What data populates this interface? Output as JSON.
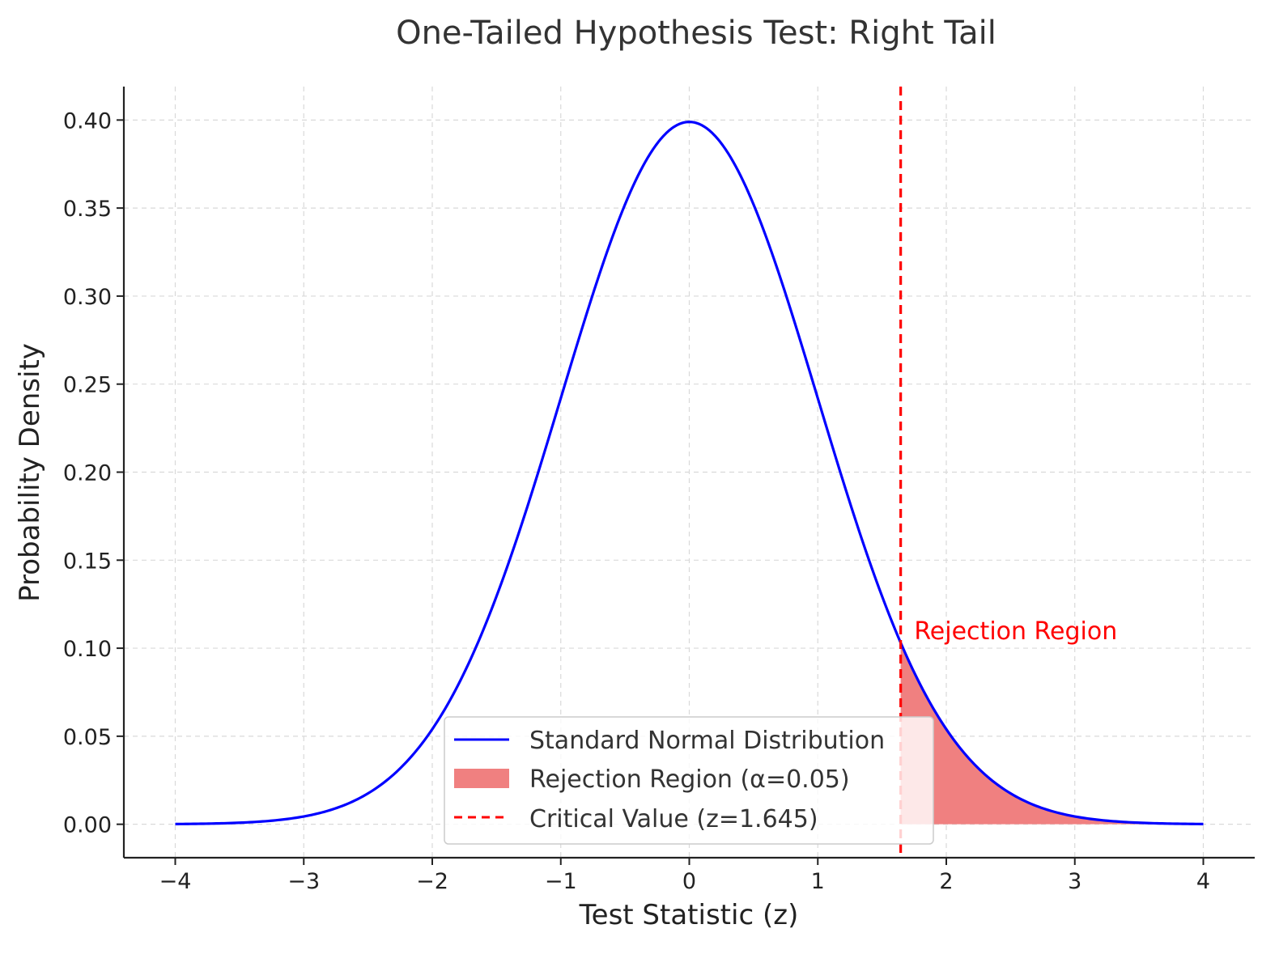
{
  "chart_data": {
    "type": "line",
    "title": "One-Tailed Hypothesis Test: Right Tail",
    "xlabel": "Test Statistic (z)",
    "ylabel": "Probability Density",
    "xlim": [
      -4.4,
      4.4
    ],
    "ylim": [
      -0.019,
      0.419
    ],
    "grid": true,
    "legend_position": "bottom-center",
    "x_ticks": [
      {
        "value": -4,
        "label": "−4"
      },
      {
        "value": -3,
        "label": "−3"
      },
      {
        "value": -2,
        "label": "−2"
      },
      {
        "value": -1,
        "label": "−1"
      },
      {
        "value": 0,
        "label": "0"
      },
      {
        "value": 1,
        "label": "1"
      },
      {
        "value": 2,
        "label": "2"
      },
      {
        "value": 3,
        "label": "3"
      },
      {
        "value": 4,
        "label": "4"
      }
    ],
    "y_ticks": [
      {
        "value": 0.0,
        "label": "0.00"
      },
      {
        "value": 0.05,
        "label": "0.05"
      },
      {
        "value": 0.1,
        "label": "0.10"
      },
      {
        "value": 0.15,
        "label": "0.15"
      },
      {
        "value": 0.2,
        "label": "0.20"
      },
      {
        "value": 0.25,
        "label": "0.25"
      },
      {
        "value": 0.3,
        "label": "0.30"
      },
      {
        "value": 0.35,
        "label": "0.35"
      },
      {
        "value": 0.4,
        "label": "0.40"
      }
    ],
    "series": [
      {
        "name": "Standard Normal Distribution",
        "kind": "line",
        "color": "#0000ff",
        "x": [
          -4.0,
          -3.75,
          -3.5,
          -3.25,
          -3.0,
          -2.75,
          -2.5,
          -2.25,
          -2.0,
          -1.75,
          -1.5,
          -1.25,
          -1.0,
          -0.75,
          -0.5,
          -0.25,
          0.0,
          0.25,
          0.5,
          0.75,
          1.0,
          1.25,
          1.5,
          1.75,
          2.0,
          2.25,
          2.5,
          2.75,
          3.0,
          3.25,
          3.5,
          3.75,
          4.0
        ],
        "y": [
          0.0001,
          0.0004,
          0.0009,
          0.002,
          0.0044,
          0.0091,
          0.0175,
          0.0317,
          0.054,
          0.0863,
          0.1295,
          0.1826,
          0.242,
          0.3011,
          0.3521,
          0.3867,
          0.3989,
          0.3867,
          0.3521,
          0.3011,
          0.242,
          0.1826,
          0.1295,
          0.0863,
          0.054,
          0.0317,
          0.0175,
          0.0091,
          0.0044,
          0.002,
          0.0009,
          0.0004,
          0.0001
        ]
      },
      {
        "name": "Rejection Region (α=0.05)",
        "kind": "area",
        "color": "#f08080",
        "x": [
          1.645,
          1.75,
          1.875,
          2.0,
          2.25,
          2.5,
          2.75,
          3.0,
          3.25,
          3.5,
          3.75,
          4.0
        ],
        "y": [
          0.1031,
          0.0863,
          0.0689,
          0.054,
          0.0317,
          0.0175,
          0.0091,
          0.0044,
          0.002,
          0.0009,
          0.0004,
          0.0001
        ]
      },
      {
        "name": "Critical Value (z=1.645)",
        "kind": "vline",
        "color": "#ff0000",
        "x": 1.645
      }
    ],
    "annotations": [
      {
        "text": "Rejection Region",
        "x": 1.75,
        "y": 0.105,
        "color": "#ff0000"
      }
    ]
  }
}
